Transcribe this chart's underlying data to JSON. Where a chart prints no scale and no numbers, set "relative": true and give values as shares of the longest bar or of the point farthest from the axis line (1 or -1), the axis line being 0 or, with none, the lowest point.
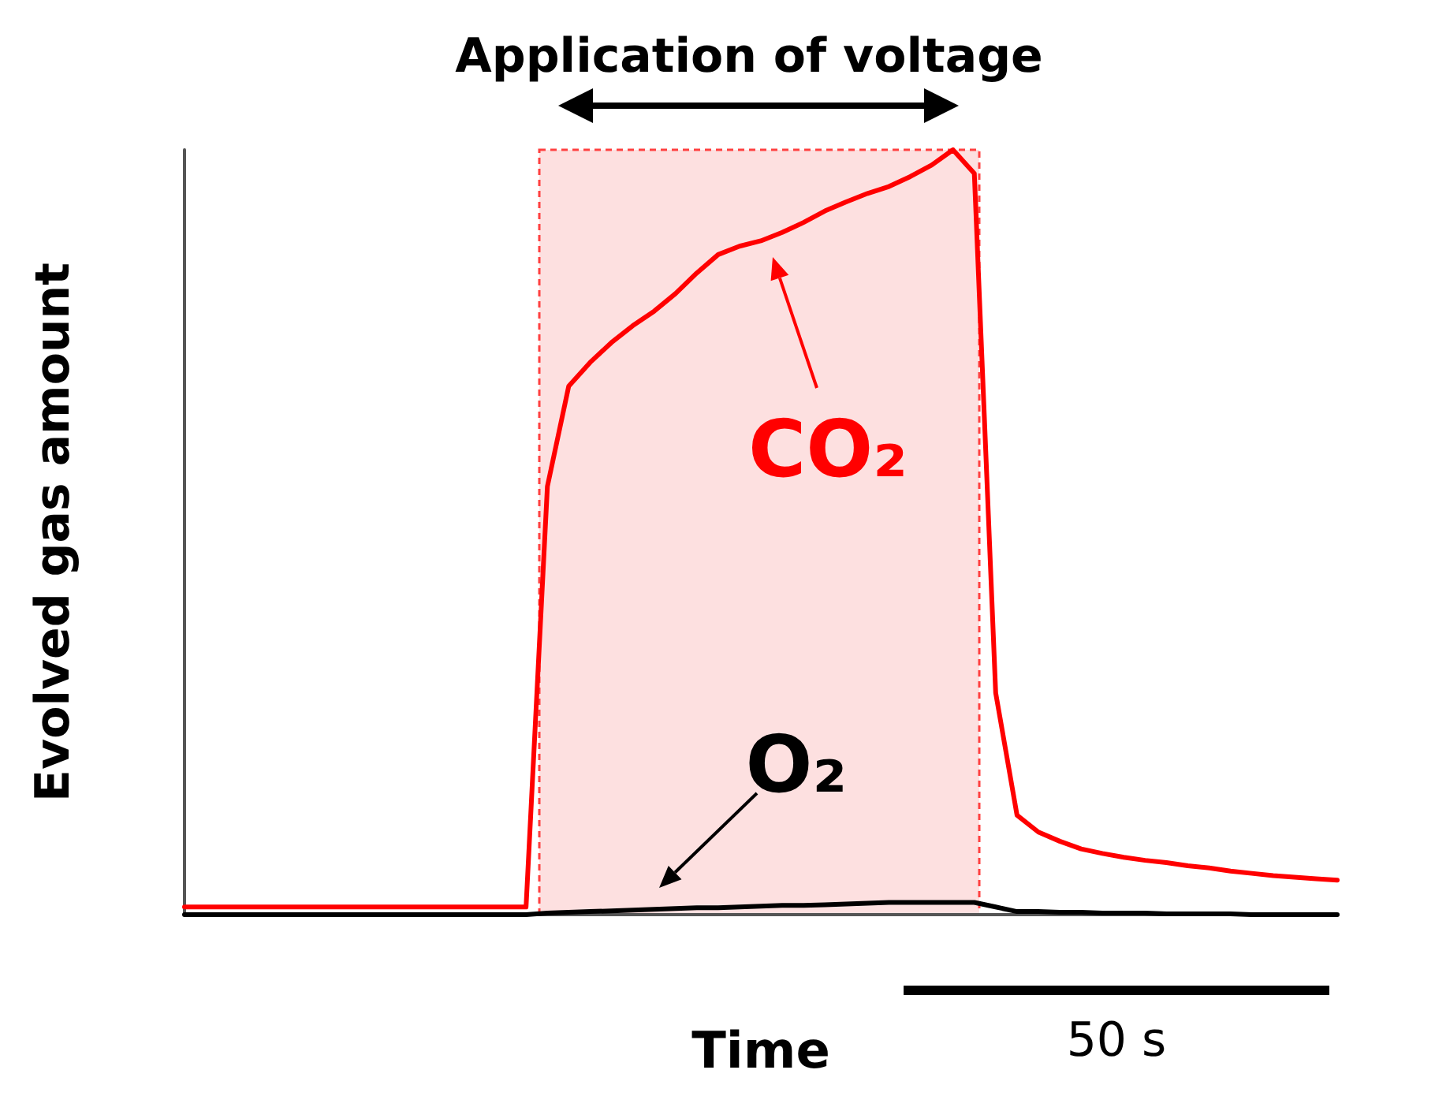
{
  "chart_data": {
    "type": "line",
    "relative": true,
    "xlabel": "Time",
    "ylabel": "Evolved gas amount",
    "categories": [
      null,
      null,
      null,
      null,
      null,
      null,
      null,
      null,
      null,
      null,
      null,
      null,
      null,
      null,
      null,
      null,
      null,
      null,
      null,
      null,
      null,
      null,
      null,
      null,
      null,
      null,
      null,
      null,
      null,
      null,
      null,
      null,
      null,
      null,
      null,
      null,
      null,
      null,
      null,
      null,
      null,
      null,
      null,
      null,
      null,
      null,
      null,
      null,
      null,
      null,
      null,
      null,
      null,
      null,
      null
    ],
    "marker": "none",
    "line_style": "solid",
    "series": [
      {
        "color": "#ff0000",
        "values": [
          0.01,
          0.01,
          0.01,
          0.01,
          0.01,
          0.01,
          0.01,
          0.01,
          0.01,
          0.01,
          0.01,
          0.01,
          0.01,
          0.01,
          0.01,
          0.01,
          0.01,
          0.56,
          0.691,
          0.722,
          0.748,
          0.77,
          0.789,
          0.812,
          0.839,
          0.863,
          0.874,
          0.881,
          0.892,
          0.905,
          0.92,
          0.932,
          0.943,
          0.952,
          0.965,
          0.98,
          1.0,
          0.969,
          0.29,
          0.13,
          0.108,
          0.096,
          0.086,
          0.08,
          0.075,
          0.071,
          0.068,
          0.064,
          0.061,
          0.057,
          0.054,
          0.051,
          0.049,
          0.047,
          0.045
        ]
      },
      {
        "color": "#000000",
        "values": [
          0,
          0,
          0,
          0,
          0,
          0,
          0,
          0,
          0,
          0,
          0,
          0,
          0,
          0,
          0,
          0,
          0,
          0.002,
          0.003,
          0.004,
          0.005,
          0.006,
          0.007,
          0.008,
          0.009,
          0.009,
          0.01,
          0.011,
          0.012,
          0.012,
          0.013,
          0.014,
          0.015,
          0.016,
          0.016,
          0.016,
          0.016,
          0.016,
          0.01,
          0.004,
          0.004,
          0.003,
          0.003,
          0.002,
          0.002,
          0.002,
          0.001,
          0.001,
          0.001,
          0.001,
          0,
          0,
          0,
          0,
          0
        ]
      }
    ],
    "annotations": [
      "Application of voltage",
      "CO₂",
      "O₂",
      "50 s"
    ]
  }
}
